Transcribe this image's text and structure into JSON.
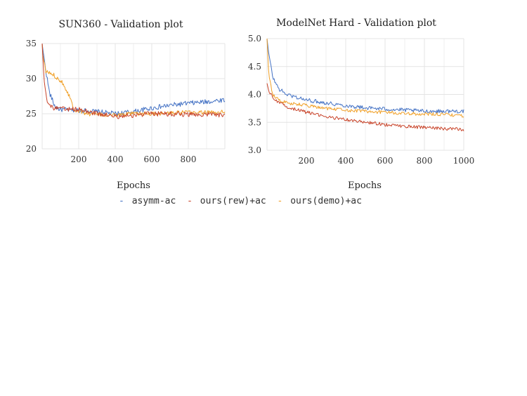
{
  "colors": {
    "asymm-ac": "#4472c4",
    "ours(rew)+ac": "#c8442a",
    "ours(demo)+ac": "#f0a028",
    "grid": "#e4e4e4"
  },
  "legend": {
    "placement": "bottom-center",
    "items": [
      {
        "marker": "-",
        "label": "asymm-ac",
        "color_key": "asymm-ac"
      },
      {
        "marker": "-",
        "label": "ours(rew)+ac",
        "color_key": "ours(rew)+ac"
      },
      {
        "marker": "-",
        "label": "ours(demo)+ac",
        "color_key": "ours(demo)+ac"
      }
    ]
  },
  "chart_data": [
    {
      "type": "line",
      "title": "SUN360 - Validation plot",
      "xlabel": "Epochs",
      "ylabel": "",
      "xlim": [
        0,
        1000
      ],
      "ylim": [
        20,
        35
      ],
      "xticks": [
        200,
        400,
        600,
        800
      ],
      "yticks": [
        20,
        25,
        30,
        35
      ],
      "grid": true,
      "series": [
        {
          "name": "asymm-ac",
          "color_key": "asymm-ac",
          "noise": 0.35,
          "points": [
            [
              0,
              35
            ],
            [
              15,
              32
            ],
            [
              40,
              28
            ],
            [
              70,
              26
            ],
            [
              100,
              25.6
            ],
            [
              200,
              25.5
            ],
            [
              300,
              25.3
            ],
            [
              400,
              25
            ],
            [
              500,
              25.3
            ],
            [
              600,
              25.8
            ],
            [
              700,
              26.2
            ],
            [
              800,
              26.5
            ],
            [
              900,
              26.7
            ],
            [
              1000,
              27
            ]
          ]
        },
        {
          "name": "ours(rew)+ac",
          "color_key": "ours(rew)+ac",
          "noise": 0.35,
          "points": [
            [
              0,
              35
            ],
            [
              10,
              30
            ],
            [
              30,
              26.5
            ],
            [
              60,
              25.8
            ],
            [
              100,
              25.7
            ],
            [
              200,
              25.6
            ],
            [
              300,
              25
            ],
            [
              400,
              24.6
            ],
            [
              500,
              24.8
            ],
            [
              600,
              25
            ],
            [
              700,
              25
            ],
            [
              800,
              24.9
            ],
            [
              900,
              24.9
            ],
            [
              1000,
              24.8
            ]
          ]
        },
        {
          "name": "ours(demo)+ac",
          "color_key": "ours(demo)+ac",
          "noise": 0.3,
          "points": [
            [
              0,
              35
            ],
            [
              5,
              33
            ],
            [
              20,
              31
            ],
            [
              60,
              30.6
            ],
            [
              110,
              29.5
            ],
            [
              150,
              27.5
            ],
            [
              175,
              25.6
            ],
            [
              250,
              25
            ],
            [
              350,
              24.8
            ],
            [
              400,
              24.8
            ],
            [
              500,
              25
            ],
            [
              600,
              25
            ],
            [
              700,
              25.1
            ],
            [
              800,
              25.2
            ],
            [
              900,
              25.2
            ],
            [
              1000,
              25.3
            ]
          ]
        }
      ]
    },
    {
      "type": "line",
      "title": "ModelNet Hard - Validation plot",
      "xlabel": "Epochs",
      "ylabel": "",
      "xlim": [
        0,
        1000
      ],
      "ylim": [
        3.0,
        5.0
      ],
      "xticks": [
        200,
        400,
        600,
        800,
        1000
      ],
      "yticks": [
        3.0,
        3.5,
        4.0,
        4.5,
        5.0
      ],
      "grid": true,
      "series": [
        {
          "name": "asymm-ac",
          "color_key": "asymm-ac",
          "noise": 0.035,
          "points": [
            [
              0,
              5.0
            ],
            [
              10,
              4.7
            ],
            [
              30,
              4.3
            ],
            [
              60,
              4.1
            ],
            [
              100,
              4.0
            ],
            [
              200,
              3.9
            ],
            [
              300,
              3.85
            ],
            [
              400,
              3.8
            ],
            [
              500,
              3.76
            ],
            [
              600,
              3.74
            ],
            [
              700,
              3.72
            ],
            [
              800,
              3.7
            ],
            [
              900,
              3.7
            ],
            [
              1000,
              3.7
            ]
          ]
        },
        {
          "name": "ours(rew)+ac",
          "color_key": "ours(rew)+ac",
          "noise": 0.03,
          "points": [
            [
              0,
              4.2
            ],
            [
              10,
              4.05
            ],
            [
              30,
              3.95
            ],
            [
              60,
              3.85
            ],
            [
              100,
              3.78
            ],
            [
              200,
              3.68
            ],
            [
              300,
              3.6
            ],
            [
              400,
              3.55
            ],
            [
              500,
              3.5
            ],
            [
              600,
              3.46
            ],
            [
              700,
              3.43
            ],
            [
              800,
              3.41
            ],
            [
              900,
              3.39
            ],
            [
              1000,
              3.37
            ]
          ]
        },
        {
          "name": "ours(demo)+ac",
          "color_key": "ours(demo)+ac",
          "noise": 0.03,
          "points": [
            [
              0,
              5.0
            ],
            [
              10,
              4.3
            ],
            [
              30,
              4.0
            ],
            [
              60,
              3.9
            ],
            [
              100,
              3.85
            ],
            [
              200,
              3.8
            ],
            [
              300,
              3.75
            ],
            [
              400,
              3.72
            ],
            [
              500,
              3.7
            ],
            [
              600,
              3.68
            ],
            [
              700,
              3.66
            ],
            [
              800,
              3.65
            ],
            [
              900,
              3.64
            ],
            [
              1000,
              3.62
            ]
          ]
        }
      ]
    }
  ]
}
